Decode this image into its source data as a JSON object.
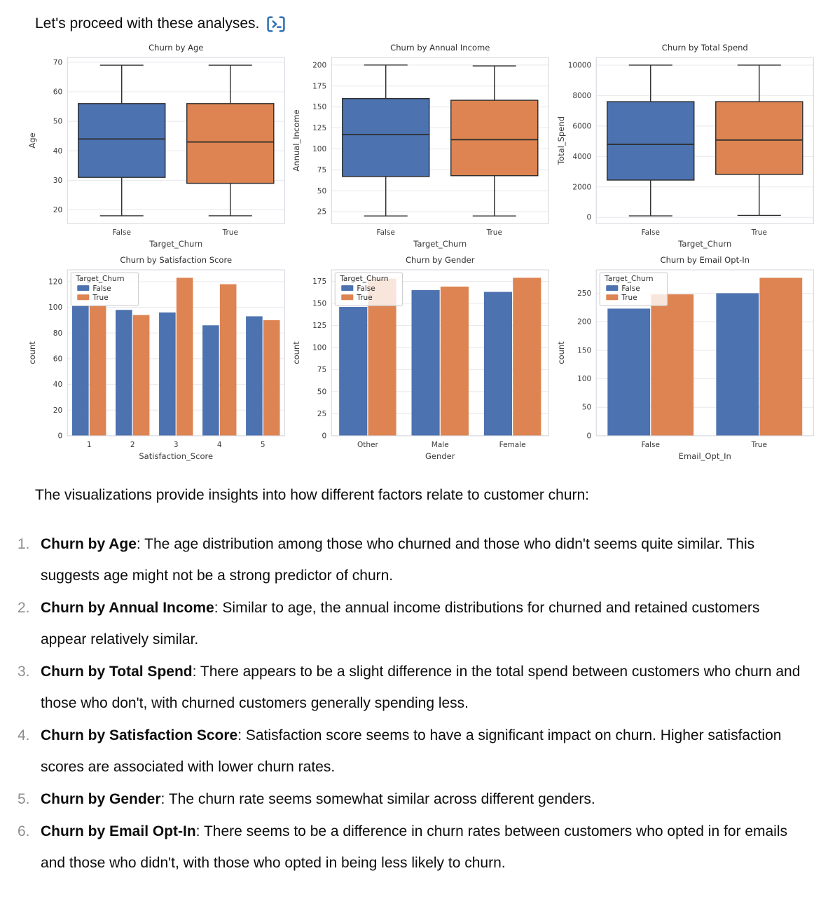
{
  "message": {
    "text": "Let's proceed with these analyses.",
    "icon": "code-interpreter-terminal-icon",
    "icon_color": "#2e6fb3"
  },
  "palette": {
    "false_blue": "#4c72b0",
    "true_orange": "#dd8452",
    "box_edge": "#2d2d2d",
    "grid": "#e8e8ee",
    "spine": "#d4d4dc",
    "chart_text": "#3a3a3a",
    "body_text": "#0d0d0d",
    "list_number_gray": "#8f8f8f"
  },
  "chart_data": [
    {
      "type": "box",
      "title": "Churn by Age",
      "xlabel": "Target_Churn",
      "ylabel": "Age",
      "categories": [
        "False",
        "True"
      ],
      "yticks": [
        20,
        30,
        40,
        50,
        60,
        70
      ],
      "ylim": [
        15.4,
        71.6
      ],
      "grid": "horizontal",
      "boxes": [
        {
          "label": "False",
          "color": "#4c72b0",
          "whisker_low": 18,
          "q1": 31,
          "median": 44,
          "q3": 56,
          "whisker_high": 69
        },
        {
          "label": "True",
          "color": "#dd8452",
          "whisker_low": 18,
          "q1": 29,
          "median": 43,
          "q3": 56,
          "whisker_high": 69
        }
      ]
    },
    {
      "type": "box",
      "title": "Churn by Annual Income",
      "xlabel": "Target_Churn",
      "ylabel": "Annual_Income",
      "categories": [
        "False",
        "True"
      ],
      "yticks": [
        25,
        50,
        75,
        100,
        125,
        150,
        175,
        200
      ],
      "ylim": [
        11,
        209
      ],
      "grid": "horizontal",
      "boxes": [
        {
          "label": "False",
          "color": "#4c72b0",
          "whisker_low": 20,
          "q1": 67,
          "median": 117,
          "q3": 160,
          "whisker_high": 200
        },
        {
          "label": "True",
          "color": "#dd8452",
          "whisker_low": 20,
          "q1": 68,
          "median": 111,
          "q3": 158,
          "whisker_high": 199
        }
      ]
    },
    {
      "type": "box",
      "title": "Churn by Total Spend",
      "xlabel": "Target_Churn",
      "ylabel": "Total_Spend",
      "categories": [
        "False",
        "True"
      ],
      "yticks": [
        0,
        2000,
        4000,
        6000,
        8000,
        10000
      ],
      "ylim": [
        -400,
        10500
      ],
      "grid": "horizontal",
      "boxes": [
        {
          "label": "False",
          "color": "#4c72b0",
          "whisker_low": 100,
          "q1": 2450,
          "median": 4800,
          "q3": 7600,
          "whisker_high": 10000
        },
        {
          "label": "True",
          "color": "#dd8452",
          "whisker_low": 130,
          "q1": 2820,
          "median": 5080,
          "q3": 7600,
          "whisker_high": 10000
        }
      ]
    },
    {
      "type": "bar",
      "title": "Churn by Satisfaction Score",
      "xlabel": "Satisfaction_Score",
      "ylabel": "count",
      "categories": [
        "1",
        "2",
        "3",
        "4",
        "5"
      ],
      "yticks": [
        0,
        20,
        40,
        60,
        80,
        100,
        120
      ],
      "ylim": [
        0,
        129.2
      ],
      "grid": "horizontal",
      "legend": {
        "title": "Target_Churn",
        "position": "upper-left",
        "entries": [
          "False",
          "True"
        ]
      },
      "series": [
        {
          "name": "False",
          "color": "#4c72b0",
          "values": [
            101,
            98,
            96,
            86,
            93
          ]
        },
        {
          "name": "True",
          "color": "#dd8452",
          "values": [
            101,
            94,
            123,
            118,
            90
          ]
        }
      ]
    },
    {
      "type": "bar",
      "title": "Churn by Gender",
      "xlabel": "Gender",
      "ylabel": "count",
      "categories": [
        "Other",
        "Male",
        "Female"
      ],
      "yticks": [
        0,
        25,
        50,
        75,
        100,
        125,
        150,
        175
      ],
      "ylim": [
        0,
        188
      ],
      "grid": "horizontal",
      "legend": {
        "title": "Target_Churn",
        "position": "upper-left",
        "entries": [
          "False",
          "True"
        ]
      },
      "series": [
        {
          "name": "False",
          "color": "#4c72b0",
          "values": [
            146,
            165,
            163
          ]
        },
        {
          "name": "True",
          "color": "#dd8452",
          "values": [
            178,
            169,
            179
          ]
        }
      ]
    },
    {
      "type": "bar",
      "title": "Churn by Email Opt-In",
      "xlabel": "Email_Opt_In",
      "ylabel": "count",
      "categories": [
        "False",
        "True"
      ],
      "yticks": [
        0,
        50,
        100,
        150,
        200,
        250
      ],
      "ylim": [
        0,
        291
      ],
      "grid": "horizontal",
      "legend": {
        "title": "Target_Churn",
        "position": "upper-left",
        "entries": [
          "False",
          "True"
        ]
      },
      "series": [
        {
          "name": "False",
          "color": "#4c72b0",
          "values": [
            223,
            250
          ]
        },
        {
          "name": "True",
          "color": "#dd8452",
          "values": [
            248,
            277
          ]
        }
      ]
    }
  ],
  "summary": {
    "intro": "The visualizations provide insights into how different factors relate to customer churn:",
    "items": [
      {
        "num": "1.",
        "title": "Churn by Age",
        "text": ": The age distribution among those who churned and those who didn't seems quite similar. This suggests age might not be a strong predictor of churn."
      },
      {
        "num": "2.",
        "title": "Churn by Annual Income",
        "text": ": Similar to age, the annual income distributions for churned and retained customers appear relatively similar."
      },
      {
        "num": "3.",
        "title": "Churn by Total Spend",
        "text": ": There appears to be a slight difference in the total spend between customers who churn and those who don't, with churned customers generally spending less."
      },
      {
        "num": "4.",
        "title": "Churn by Satisfaction Score",
        "text": ": Satisfaction score seems to have a significant impact on churn. Higher satisfaction scores are associated with lower churn rates."
      },
      {
        "num": "5.",
        "title": "Churn by Gender",
        "text": ": The churn rate seems somewhat similar across different genders."
      },
      {
        "num": "6.",
        "title": "Churn by Email Opt-In",
        "text": ": There seems to be a difference in churn rates between customers who opted in for emails and those who didn't, with those who opted in being less likely to churn."
      }
    ]
  }
}
